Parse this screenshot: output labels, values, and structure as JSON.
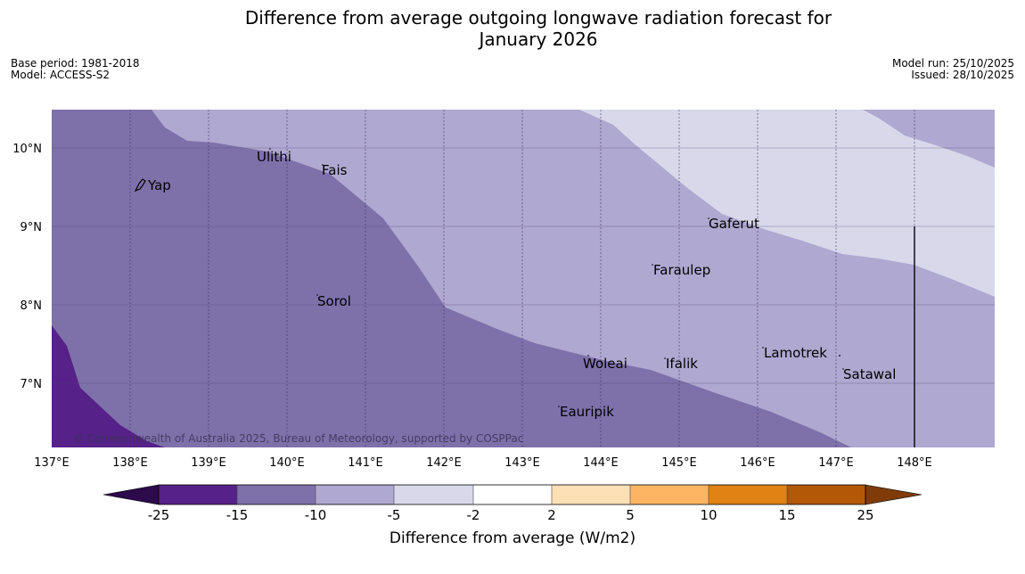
{
  "title_line1": "Difference from average outgoing longwave radiation forecast for",
  "title_line2": "January 2026",
  "meta_left": {
    "base_period": "Base period: 1981-2018",
    "model": "Model: ACCESS-S2"
  },
  "meta_right": {
    "model_run": "Model run: 25/10/2025",
    "issued": "Issued: 28/10/2025"
  },
  "map": {
    "lon_labels": [
      "137°E",
      "138°E",
      "139°E",
      "140°E",
      "141°E",
      "142°E",
      "143°E",
      "144°E",
      "145°E",
      "146°E",
      "147°E",
      "148°E"
    ],
    "lat_labels": [
      "10°N",
      "9°N",
      "8°N",
      "7°N"
    ],
    "places": [
      "Yap",
      "Ulithi",
      "Fais",
      "Gaferut",
      "Faraulep",
      "Sorol",
      "Woleai",
      "Ifalik",
      "Lamotrek",
      "Satawal",
      "Eauripik"
    ],
    "copyright": "© Commonwealth of Australia 2025, Bureau of Meteorology, supported by COSPPac"
  },
  "colorbar": {
    "ticks": [
      "-25",
      "-15",
      "-10",
      "-5",
      "-2",
      "2",
      "5",
      "10",
      "15",
      "25"
    ],
    "title": "Difference from average (W/m2)",
    "colors": [
      "#2d0a4b",
      "#562189",
      "#7e71aa",
      "#afa8d0",
      "#d8d8ea",
      "#ffffff",
      "#fde0b6",
      "#fdb563",
      "#e08214",
      "#b35806",
      "#7f3b08"
    ]
  }
}
